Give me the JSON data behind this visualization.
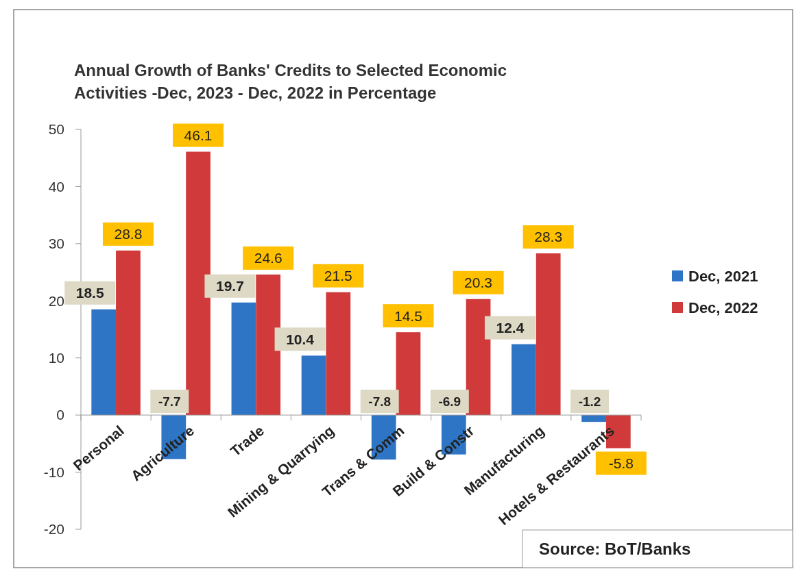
{
  "chart_data": {
    "type": "bar",
    "title": "Annual Growth of Banks' Credits to Selected Economic Activities -Dec, 2023 - Dec, 2022 in Percentage",
    "categories": [
      "Personal",
      "Agriculture",
      "Trade",
      "Mining & Quarrying",
      "Trans & Comm",
      "Build & Constr",
      "Manufacturing",
      "Hotels & Restaurants"
    ],
    "series": [
      {
        "name": "Dec, 2021",
        "color": "#2e75c6",
        "values": [
          18.5,
          -7.7,
          19.7,
          10.4,
          -7.8,
          -6.9,
          12.4,
          -1.2
        ]
      },
      {
        "name": "Dec, 2022",
        "color": "#d03a3a",
        "values": [
          28.8,
          46.1,
          24.6,
          21.5,
          14.5,
          20.3,
          28.3,
          -5.8
        ]
      }
    ],
    "ylim": [
      -20,
      50
    ],
    "yticks": [
      -20,
      -10,
      0,
      10,
      20,
      30,
      40,
      50
    ],
    "data_labels": true,
    "legend": "right",
    "grid": false,
    "annotations": [
      "Source: BoT/Banks"
    ]
  }
}
